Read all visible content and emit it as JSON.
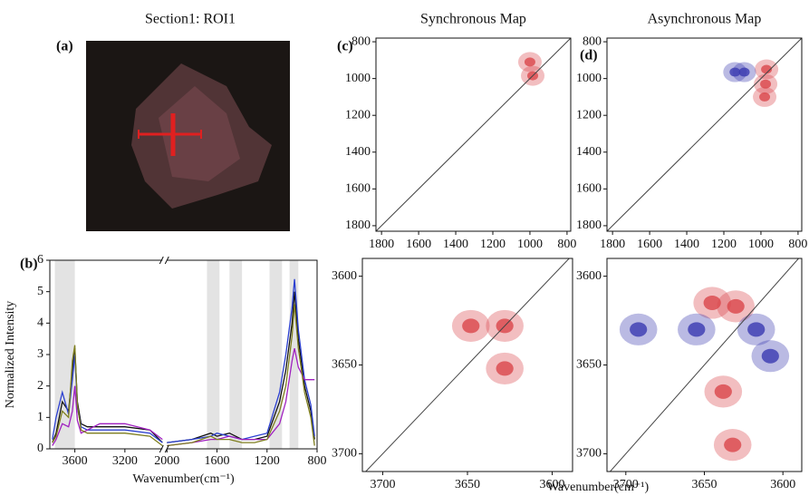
{
  "image_panel": {
    "label": "(a)",
    "title": "Section1: ROI1"
  },
  "maps_x_label": "Wavenumber(cm⁻¹)",
  "chart_data": [
    {
      "type": "line",
      "label": "(b)",
      "x_label": "Wavenumber(cm⁻¹)",
      "y_label": "Normalized Intensity",
      "xlim": [
        3800,
        800
      ],
      "xbreak": [
        2900,
        2000
      ],
      "xticks": [
        3600,
        3200,
        2000,
        1600,
        1200,
        800
      ],
      "ylim": [
        0,
        6
      ],
      "yticks": [
        0,
        1,
        2,
        3,
        4,
        5,
        6
      ],
      "shaded_ranges": [
        [
          3760,
          3600
        ],
        [
          1680,
          1580
        ],
        [
          1500,
          1400
        ],
        [
          1180,
          1080
        ],
        [
          1020,
          950
        ]
      ],
      "x": [
        3780,
        3750,
        3700,
        3650,
        3620,
        3600,
        3580,
        3550,
        3500,
        3400,
        3200,
        3000,
        2900,
        2450,
        2000,
        1800,
        1650,
        1600,
        1500,
        1400,
        1300,
        1200,
        1100,
        1050,
        1000,
        980,
        950,
        900,
        850,
        820
      ],
      "series": [
        {
          "color": "#111111",
          "values": [
            0.2,
            0.5,
            1.5,
            1.2,
            2.5,
            3.2,
            1.5,
            0.8,
            0.7,
            0.7,
            0.7,
            0.6,
            0.2,
            null,
            0.2,
            0.3,
            0.5,
            0.4,
            0.5,
            0.3,
            0.3,
            0.4,
            1.5,
            2.5,
            4.0,
            5.0,
            3.5,
            2.0,
            1.2,
            0.3
          ]
        },
        {
          "color": "#2b3fd0",
          "values": [
            0.3,
            1.0,
            1.8,
            1.1,
            2.2,
            3.0,
            1.3,
            0.7,
            0.6,
            0.6,
            0.6,
            0.5,
            0.2,
            null,
            0.2,
            0.3,
            0.4,
            0.5,
            0.4,
            0.3,
            0.4,
            0.5,
            1.8,
            3.0,
            4.5,
            5.4,
            3.8,
            2.2,
            1.4,
            0.4
          ]
        },
        {
          "color": "#a020c0",
          "values": [
            0.1,
            0.3,
            0.8,
            0.7,
            1.2,
            2.0,
            0.9,
            0.5,
            0.6,
            0.8,
            0.8,
            0.6,
            0.3,
            null,
            0.1,
            0.2,
            0.3,
            0.3,
            0.4,
            0.3,
            0.3,
            0.3,
            0.8,
            1.5,
            2.8,
            3.2,
            2.6,
            2.2,
            2.2,
            2.2
          ]
        },
        {
          "color": "#7f7f1f",
          "values": [
            0.2,
            0.4,
            1.2,
            1.0,
            2.8,
            3.3,
            1.4,
            0.6,
            0.5,
            0.5,
            0.5,
            0.4,
            0.1,
            null,
            0.1,
            0.2,
            0.4,
            0.3,
            0.3,
            0.2,
            0.2,
            0.3,
            1.2,
            2.0,
            3.6,
            4.6,
            3.2,
            1.8,
            1.0,
            0.1
          ]
        }
      ]
    },
    {
      "type": "contour",
      "label": "(c)",
      "title": "Synchronous Map",
      "xlim": [
        1830,
        780
      ],
      "xticks": [
        1800,
        1600,
        1400,
        1200,
        1000,
        800
      ],
      "ylim": [
        1830,
        780
      ],
      "yticks": [
        800,
        1000,
        1200,
        1400,
        1600,
        1800
      ],
      "positive_peaks": {
        "color": "#d9464a",
        "x": [
          985,
          1000
        ],
        "y": [
          985,
          910
        ]
      }
    },
    {
      "type": "contour",
      "xlim": [
        3712,
        3588
      ],
      "xticks": [
        3700,
        3650,
        3600
      ],
      "ylim": [
        3710,
        3590
      ],
      "yticks": [
        3600,
        3650,
        3700
      ],
      "positive_peaks": {
        "color": "#d9464a",
        "x": [
          3628,
          3648,
          3628
        ],
        "y": [
          3628,
          3628,
          3652
        ]
      }
    },
    {
      "type": "contour",
      "label": "(d)",
      "title": "Asynchronous Map",
      "xlim": [
        1830,
        780
      ],
      "xticks": [
        1800,
        1600,
        1400,
        1200,
        1000,
        800
      ],
      "ylim": [
        1830,
        780
      ],
      "yticks": [
        800,
        1000,
        1200,
        1400,
        1600,
        1800
      ],
      "positive_peaks": {
        "color": "#d9464a",
        "x": [
          975,
          980,
          970
        ],
        "y": [
          1030,
          1100,
          950
        ]
      },
      "negative_peaks": {
        "color": "#3a3ab0",
        "x": [
          1090,
          1140
        ],
        "y": [
          965,
          965
        ]
      }
    },
    {
      "type": "contour",
      "xlim": [
        3712,
        3588
      ],
      "xticks": [
        3700,
        3650,
        3600
      ],
      "ylim": [
        3710,
        3590
      ],
      "yticks": [
        3600,
        3650,
        3700
      ],
      "positive_peaks": {
        "color": "#d9464a",
        "x": [
          3630,
          3645,
          3638,
          3632
        ],
        "y": [
          3617,
          3615,
          3665,
          3695
        ]
      },
      "negative_peaks": {
        "color": "#3a3ab0",
        "x": [
          3617,
          3655,
          3692,
          3608
        ],
        "y": [
          3630,
          3630,
          3630,
          3645
        ]
      }
    }
  ]
}
